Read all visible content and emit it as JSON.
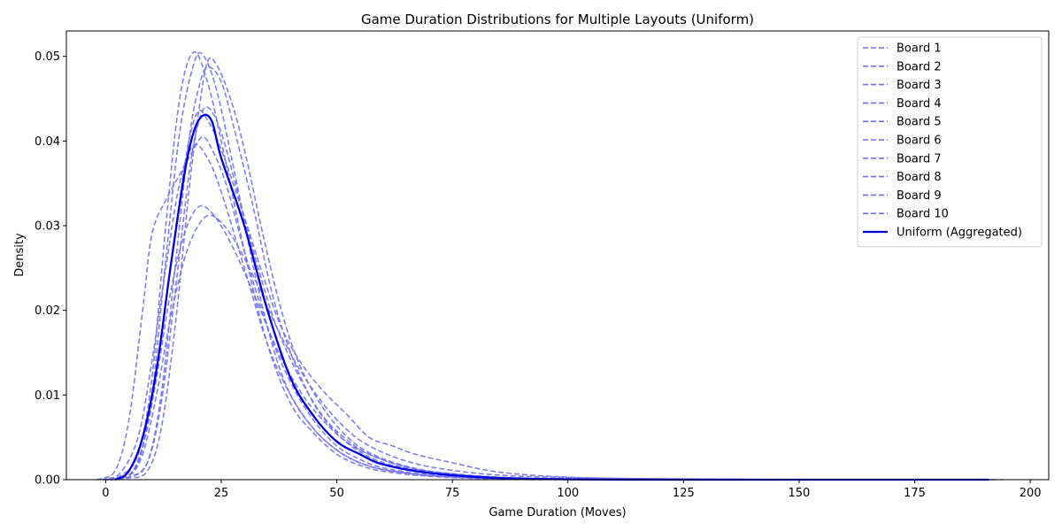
{
  "chart_data": {
    "type": "line",
    "title": "Game Duration Distributions for Multiple Layouts (Uniform)",
    "xlabel": "Game Duration (Moves)",
    "ylabel": "Density",
    "xlim": [
      -8.5,
      204
    ],
    "ylim": [
      0,
      0.053
    ],
    "xticks": [
      0,
      25,
      50,
      75,
      100,
      125,
      150,
      175,
      200
    ],
    "yticks": [
      0.0,
      0.01,
      0.02,
      0.03,
      0.04,
      0.05
    ],
    "ytick_labels": [
      "0.00",
      "0.01",
      "0.02",
      "0.03",
      "0.04",
      "0.05"
    ],
    "grid": false,
    "legend_position": "top-right",
    "colors": {
      "board": "#7070ee",
      "aggregate": "#0000e0"
    },
    "series": [
      {
        "name": "Board 1",
        "style": "dashed",
        "points": [
          [
            -1,
            0
          ],
          [
            3,
            0.0004
          ],
          [
            7,
            0.003
          ],
          [
            10,
            0.012
          ],
          [
            13,
            0.03
          ],
          [
            16,
            0.045
          ],
          [
            19,
            0.0505
          ],
          [
            22,
            0.047
          ],
          [
            25,
            0.04
          ],
          [
            30,
            0.027
          ],
          [
            35,
            0.016
          ],
          [
            40,
            0.009
          ],
          [
            45,
            0.0055
          ],
          [
            50,
            0.003
          ],
          [
            55,
            0.0017
          ],
          [
            60,
            0.001
          ],
          [
            70,
            0.0004
          ],
          [
            85,
            0.0001
          ],
          [
            110,
            0
          ],
          [
            150,
            0
          ],
          [
            185,
            0
          ]
        ]
      },
      {
        "name": "Board 2",
        "style": "dashed",
        "points": [
          [
            -1,
            0
          ],
          [
            3,
            0.0007
          ],
          [
            7,
            0.005
          ],
          [
            10,
            0.014
          ],
          [
            13,
            0.025
          ],
          [
            16,
            0.035
          ],
          [
            19,
            0.0395
          ],
          [
            22,
            0.038
          ],
          [
            25,
            0.034
          ],
          [
            30,
            0.025
          ],
          [
            35,
            0.016
          ],
          [
            40,
            0.01
          ],
          [
            45,
            0.006
          ],
          [
            50,
            0.0035
          ],
          [
            55,
            0.002
          ],
          [
            60,
            0.0012
          ],
          [
            70,
            0.0005
          ],
          [
            85,
            0.0002
          ],
          [
            110,
            0
          ],
          [
            150,
            0
          ],
          [
            185,
            0
          ]
        ]
      },
      {
        "name": "Board 3",
        "style": "dashed",
        "points": [
          [
            0,
            0
          ],
          [
            5,
            0.0005
          ],
          [
            8,
            0.004
          ],
          [
            11,
            0.012
          ],
          [
            14,
            0.022
          ],
          [
            17,
            0.029
          ],
          [
            20,
            0.0322
          ],
          [
            23,
            0.0315
          ],
          [
            27,
            0.028
          ],
          [
            32,
            0.022
          ],
          [
            37,
            0.0155
          ],
          [
            42,
            0.0105
          ],
          [
            47,
            0.007
          ],
          [
            52,
            0.0045
          ],
          [
            57,
            0.003
          ],
          [
            65,
            0.0015
          ],
          [
            75,
            0.0007
          ],
          [
            90,
            0.0002
          ],
          [
            120,
            0
          ],
          [
            160,
            0
          ],
          [
            190,
            0
          ]
        ]
      },
      {
        "name": "Board 4",
        "style": "dashed",
        "points": [
          [
            0,
            0
          ],
          [
            5,
            0.0005
          ],
          [
            8,
            0.003
          ],
          [
            11,
            0.01
          ],
          [
            14,
            0.019
          ],
          [
            17,
            0.026
          ],
          [
            20,
            0.03
          ],
          [
            23,
            0.0312
          ],
          [
            27,
            0.029
          ],
          [
            32,
            0.024
          ],
          [
            37,
            0.018
          ],
          [
            42,
            0.013
          ],
          [
            47,
            0.009
          ],
          [
            52,
            0.006
          ],
          [
            57,
            0.004
          ],
          [
            65,
            0.0022
          ],
          [
            75,
            0.0011
          ],
          [
            90,
            0.0004
          ],
          [
            120,
            0.0001
          ],
          [
            160,
            0
          ],
          [
            192,
            0
          ]
        ]
      },
      {
        "name": "Board 5",
        "style": "dashed",
        "points": [
          [
            -2,
            0
          ],
          [
            2,
            0.001
          ],
          [
            5,
            0.007
          ],
          [
            8,
            0.02
          ],
          [
            10,
            0.029
          ],
          [
            13,
            0.033
          ],
          [
            16,
            0.036
          ],
          [
            19,
            0.039
          ],
          [
            21,
            0.0405
          ],
          [
            23,
            0.039
          ],
          [
            26,
            0.035
          ],
          [
            30,
            0.027
          ],
          [
            35,
            0.018
          ],
          [
            40,
            0.0115
          ],
          [
            45,
            0.007
          ],
          [
            50,
            0.004
          ],
          [
            55,
            0.0024
          ],
          [
            60,
            0.0014
          ],
          [
            70,
            0.0006
          ],
          [
            85,
            0.0002
          ],
          [
            110,
            0
          ],
          [
            150,
            0
          ],
          [
            185,
            0
          ]
        ]
      },
      {
        "name": "Board 6",
        "style": "dashed",
        "points": [
          [
            0,
            0
          ],
          [
            4,
            0.0003
          ],
          [
            7,
            0.002
          ],
          [
            10,
            0.01
          ],
          [
            13,
            0.026
          ],
          [
            16,
            0.041
          ],
          [
            19,
            0.049
          ],
          [
            21,
            0.0502
          ],
          [
            24,
            0.046
          ],
          [
            28,
            0.036
          ],
          [
            32,
            0.025
          ],
          [
            36,
            0.016
          ],
          [
            40,
            0.01
          ],
          [
            45,
            0.006
          ],
          [
            50,
            0.0035
          ],
          [
            55,
            0.002
          ],
          [
            62,
            0.001
          ],
          [
            75,
            0.0003
          ],
          [
            95,
            0
          ],
          [
            150,
            0
          ],
          [
            185,
            0
          ]
        ]
      },
      {
        "name": "Board 7",
        "style": "dashed",
        "points": [
          [
            1,
            0
          ],
          [
            5,
            0.0003
          ],
          [
            9,
            0.002
          ],
          [
            12,
            0.01
          ],
          [
            15,
            0.025
          ],
          [
            18,
            0.04
          ],
          [
            20,
            0.046
          ],
          [
            22,
            0.0487
          ],
          [
            25,
            0.047
          ],
          [
            28,
            0.041
          ],
          [
            32,
            0.032
          ],
          [
            36,
            0.022
          ],
          [
            40,
            0.015
          ],
          [
            45,
            0.009
          ],
          [
            50,
            0.0055
          ],
          [
            55,
            0.0033
          ],
          [
            62,
            0.0017
          ],
          [
            75,
            0.0006
          ],
          [
            95,
            0.0001
          ],
          [
            150,
            0
          ],
          [
            188,
            0
          ]
        ]
      },
      {
        "name": "Board 8",
        "style": "dashed",
        "points": [
          [
            1,
            0
          ],
          [
            5,
            0.0002
          ],
          [
            9,
            0.001
          ],
          [
            12,
            0.006
          ],
          [
            15,
            0.018
          ],
          [
            18,
            0.034
          ],
          [
            20,
            0.043
          ],
          [
            22,
            0.0493
          ],
          [
            24,
            0.049
          ],
          [
            27,
            0.045
          ],
          [
            30,
            0.039
          ],
          [
            34,
            0.029
          ],
          [
            38,
            0.02
          ],
          [
            42,
            0.0135
          ],
          [
            47,
            0.0085
          ],
          [
            52,
            0.0052
          ],
          [
            57,
            0.0032
          ],
          [
            65,
            0.0016
          ],
          [
            75,
            0.0007
          ],
          [
            95,
            0.0001
          ],
          [
            150,
            0
          ],
          [
            190,
            0
          ]
        ]
      },
      {
        "name": "Board 9",
        "style": "dashed",
        "points": [
          [
            0,
            0
          ],
          [
            4,
            0.0003
          ],
          [
            7,
            0.002
          ],
          [
            10,
            0.009
          ],
          [
            13,
            0.021
          ],
          [
            16,
            0.033
          ],
          [
            18,
            0.04
          ],
          [
            20,
            0.0435
          ],
          [
            22,
            0.0425
          ],
          [
            25,
            0.039
          ],
          [
            30,
            0.031
          ],
          [
            35,
            0.0225
          ],
          [
            38,
            0.018
          ],
          [
            42,
            0.014
          ],
          [
            47,
            0.0105
          ],
          [
            52,
            0.0078
          ],
          [
            57,
            0.005
          ],
          [
            62,
            0.004
          ],
          [
            67,
            0.003
          ],
          [
            75,
            0.002
          ],
          [
            85,
            0.0009
          ],
          [
            100,
            0.0003
          ],
          [
            120,
            0.0001
          ],
          [
            160,
            0
          ],
          [
            194,
            0
          ]
        ]
      },
      {
        "name": "Board 10",
        "style": "dashed",
        "points": [
          [
            1,
            0
          ],
          [
            5,
            0.0003
          ],
          [
            9,
            0.002
          ],
          [
            12,
            0.009
          ],
          [
            15,
            0.022
          ],
          [
            18,
            0.036
          ],
          [
            20,
            0.042
          ],
          [
            22,
            0.044
          ],
          [
            25,
            0.041
          ],
          [
            29,
            0.033
          ],
          [
            33,
            0.025
          ],
          [
            37,
            0.018
          ],
          [
            42,
            0.012
          ],
          [
            47,
            0.0075
          ],
          [
            52,
            0.0048
          ],
          [
            57,
            0.003
          ],
          [
            65,
            0.0015
          ],
          [
            75,
            0.0006
          ],
          [
            95,
            0.0001
          ],
          [
            150,
            0
          ],
          [
            188,
            0
          ]
        ]
      },
      {
        "name": "Uniform (Aggregated)",
        "style": "solid",
        "points": [
          [
            2,
            0
          ],
          [
            5,
            0.001
          ],
          [
            8,
            0.005
          ],
          [
            11,
            0.013
          ],
          [
            14,
            0.025
          ],
          [
            17,
            0.036
          ],
          [
            19,
            0.041
          ],
          [
            21,
            0.043
          ],
          [
            23,
            0.0423
          ],
          [
            25,
            0.038
          ],
          [
            30,
            0.03
          ],
          [
            35,
            0.02
          ],
          [
            40,
            0.012
          ],
          [
            45,
            0.0075
          ],
          [
            50,
            0.0045
          ],
          [
            55,
            0.003
          ],
          [
            60,
            0.0018
          ],
          [
            70,
            0.0008
          ],
          [
            85,
            0.0002
          ],
          [
            110,
            0
          ],
          [
            150,
            0
          ],
          [
            191,
            0
          ]
        ]
      }
    ]
  }
}
